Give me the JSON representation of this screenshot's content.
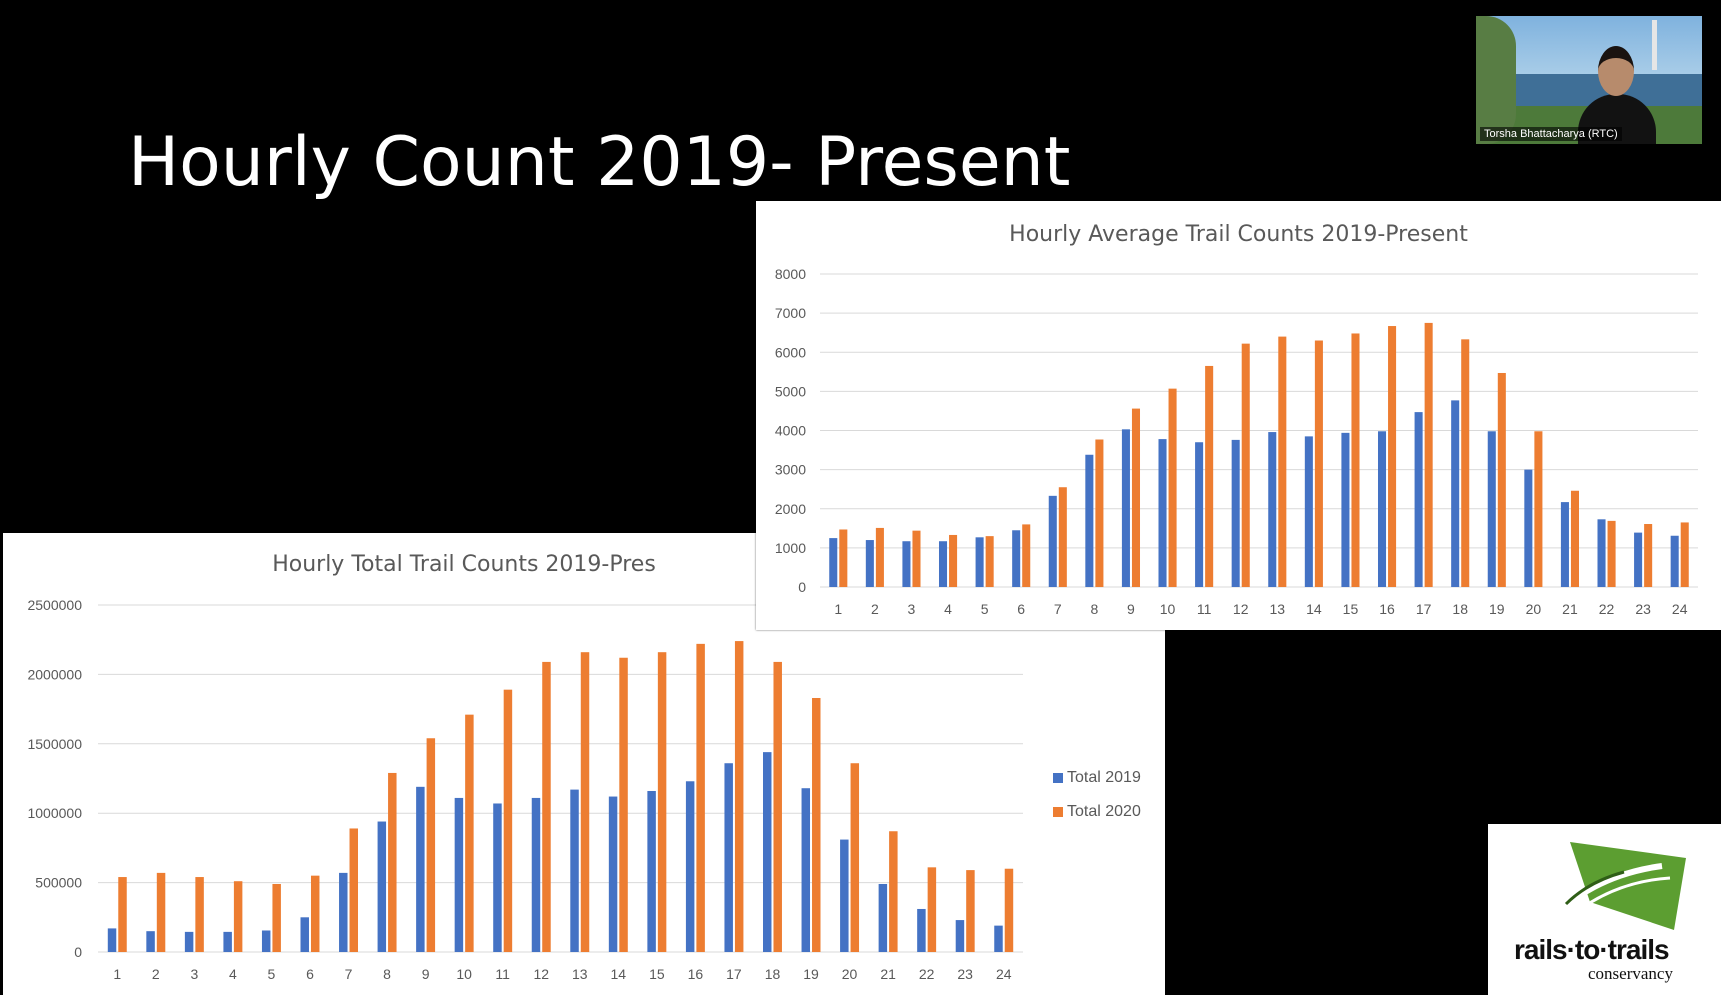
{
  "slide": {
    "title": "Hourly Count 2019- Present"
  },
  "colors": {
    "series_2019": "#4472C4",
    "series_2020": "#ED7D31",
    "gridline": "#d9d9d9",
    "axis_text": "#595959"
  },
  "chart_data": [
    {
      "type": "bar",
      "title": "Hourly Total Trail Counts 2019-Pres",
      "xlabel": "",
      "ylabel": "",
      "categories": [
        "1",
        "2",
        "3",
        "4",
        "5",
        "6",
        "7",
        "8",
        "9",
        "10",
        "11",
        "12",
        "13",
        "14",
        "15",
        "16",
        "17",
        "18",
        "19",
        "20",
        "21",
        "22",
        "23",
        "24"
      ],
      "yticks": [
        "0",
        "500000",
        "1000000",
        "1500000",
        "2000000",
        "2500000"
      ],
      "ylim": [
        0,
        2500000
      ],
      "grid": true,
      "legend": "right",
      "series": [
        {
          "name": "Total 2019",
          "color": "#4472C4",
          "values": [
            170000,
            150000,
            145000,
            145000,
            155000,
            250000,
            570000,
            940000,
            1190000,
            1110000,
            1070000,
            1110000,
            1170000,
            1120000,
            1160000,
            1230000,
            1360000,
            1440000,
            1180000,
            810000,
            490000,
            310000,
            230000,
            190000
          ]
        },
        {
          "name": "Total 2020",
          "color": "#ED7D31",
          "values": [
            540000,
            570000,
            540000,
            510000,
            490000,
            550000,
            890000,
            1290000,
            1540000,
            1710000,
            1890000,
            2090000,
            2160000,
            2120000,
            2160000,
            2220000,
            2240000,
            2090000,
            1830000,
            1360000,
            870000,
            610000,
            590000,
            600000
          ]
        }
      ]
    },
    {
      "type": "bar",
      "title": "Hourly Average Trail Counts 2019-Present",
      "xlabel": "",
      "ylabel": "",
      "categories": [
        "1",
        "2",
        "3",
        "4",
        "5",
        "6",
        "7",
        "8",
        "9",
        "10",
        "11",
        "12",
        "13",
        "14",
        "15",
        "16",
        "17",
        "18",
        "19",
        "20",
        "21",
        "22",
        "23",
        "24"
      ],
      "yticks": [
        "0",
        "1000",
        "2000",
        "3000",
        "4000",
        "5000",
        "6000",
        "7000",
        "8000"
      ],
      "ylim": [
        0,
        8000
      ],
      "grid": true,
      "legend": "none",
      "series": [
        {
          "color": "#4472C4",
          "values": [
            1250,
            1200,
            1170,
            1170,
            1270,
            1450,
            2330,
            3380,
            4030,
            3780,
            3700,
            3760,
            3960,
            3850,
            3940,
            3980,
            4470,
            4770,
            3980,
            3000,
            2170,
            1730,
            1390,
            1310
          ]
        },
        {
          "color": "#ED7D31",
          "values": [
            1470,
            1510,
            1440,
            1330,
            1300,
            1600,
            2550,
            3770,
            4560,
            5070,
            5650,
            6220,
            6400,
            6300,
            6480,
            6670,
            6750,
            6330,
            5470,
            3980,
            2460,
            1690,
            1610,
            1650
          ]
        }
      ]
    }
  ],
  "video": {
    "participant_name": "Torsha Bhattacharya (RTC)"
  },
  "logo": {
    "name": "rails·to·trails",
    "subtitle": "conservancy"
  }
}
